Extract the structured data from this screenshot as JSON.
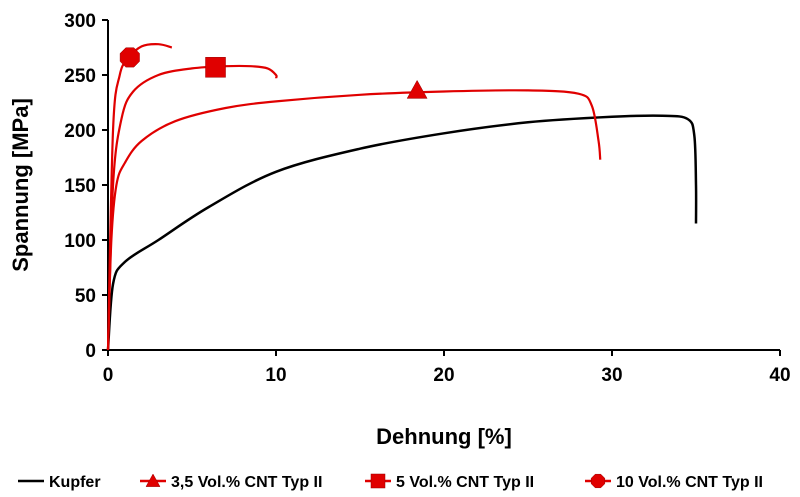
{
  "chart_data": {
    "type": "line",
    "xlabel": "Dehnung [%]",
    "ylabel": "Spannung [MPa]",
    "xlim": [
      0,
      40
    ],
    "ylim": [
      0,
      300
    ],
    "xticks": [
      0,
      10,
      20,
      30,
      40
    ],
    "yticks": [
      0,
      50,
      100,
      150,
      200,
      250,
      300
    ],
    "grid": false,
    "legend": "bottom",
    "series": [
      {
        "name": "Kupfer",
        "color": "#000000",
        "marker": "none",
        "x": [
          0,
          0.3,
          1,
          3,
          6,
          10,
          15,
          20,
          25,
          30,
          33,
          34.5,
          34.9,
          35,
          35
        ],
        "y": [
          0,
          60,
          80,
          100,
          130,
          162,
          183,
          197,
          207,
          212,
          213,
          210,
          195,
          150,
          115
        ]
      },
      {
        "name": "3,5 Vol.% CNT Typ II",
        "color": "#e00000",
        "marker": "triangle",
        "marker_at": [
          18.4,
          236
        ],
        "x": [
          0,
          0.2,
          0.5,
          1,
          2,
          4,
          7,
          10,
          15,
          20,
          25,
          28,
          28.8,
          29.2,
          29.3
        ],
        "y": [
          0,
          100,
          150,
          170,
          190,
          208,
          220,
          226,
          232,
          235,
          236,
          233,
          222,
          190,
          173
        ]
      },
      {
        "name": "5 Vol.% CNT Typ II",
        "color": "#e00000",
        "marker": "square",
        "marker_at": [
          6.4,
          257
        ],
        "x": [
          0,
          0.3,
          0.8,
          1.5,
          3,
          5,
          7,
          8.5,
          9.5,
          10,
          10
        ],
        "y": [
          0,
          150,
          210,
          235,
          250,
          256,
          258,
          258,
          256,
          250,
          247
        ]
      },
      {
        "name": "10 Vol.% CNT Typ II",
        "color": "#e00000",
        "marker": "octagon",
        "marker_at": [
          1.3,
          266
        ],
        "x": [
          0,
          0.3,
          0.7,
          1.2,
          2,
          3,
          3.8
        ],
        "y": [
          0,
          200,
          250,
          265,
          276,
          278,
          275
        ]
      }
    ]
  }
}
